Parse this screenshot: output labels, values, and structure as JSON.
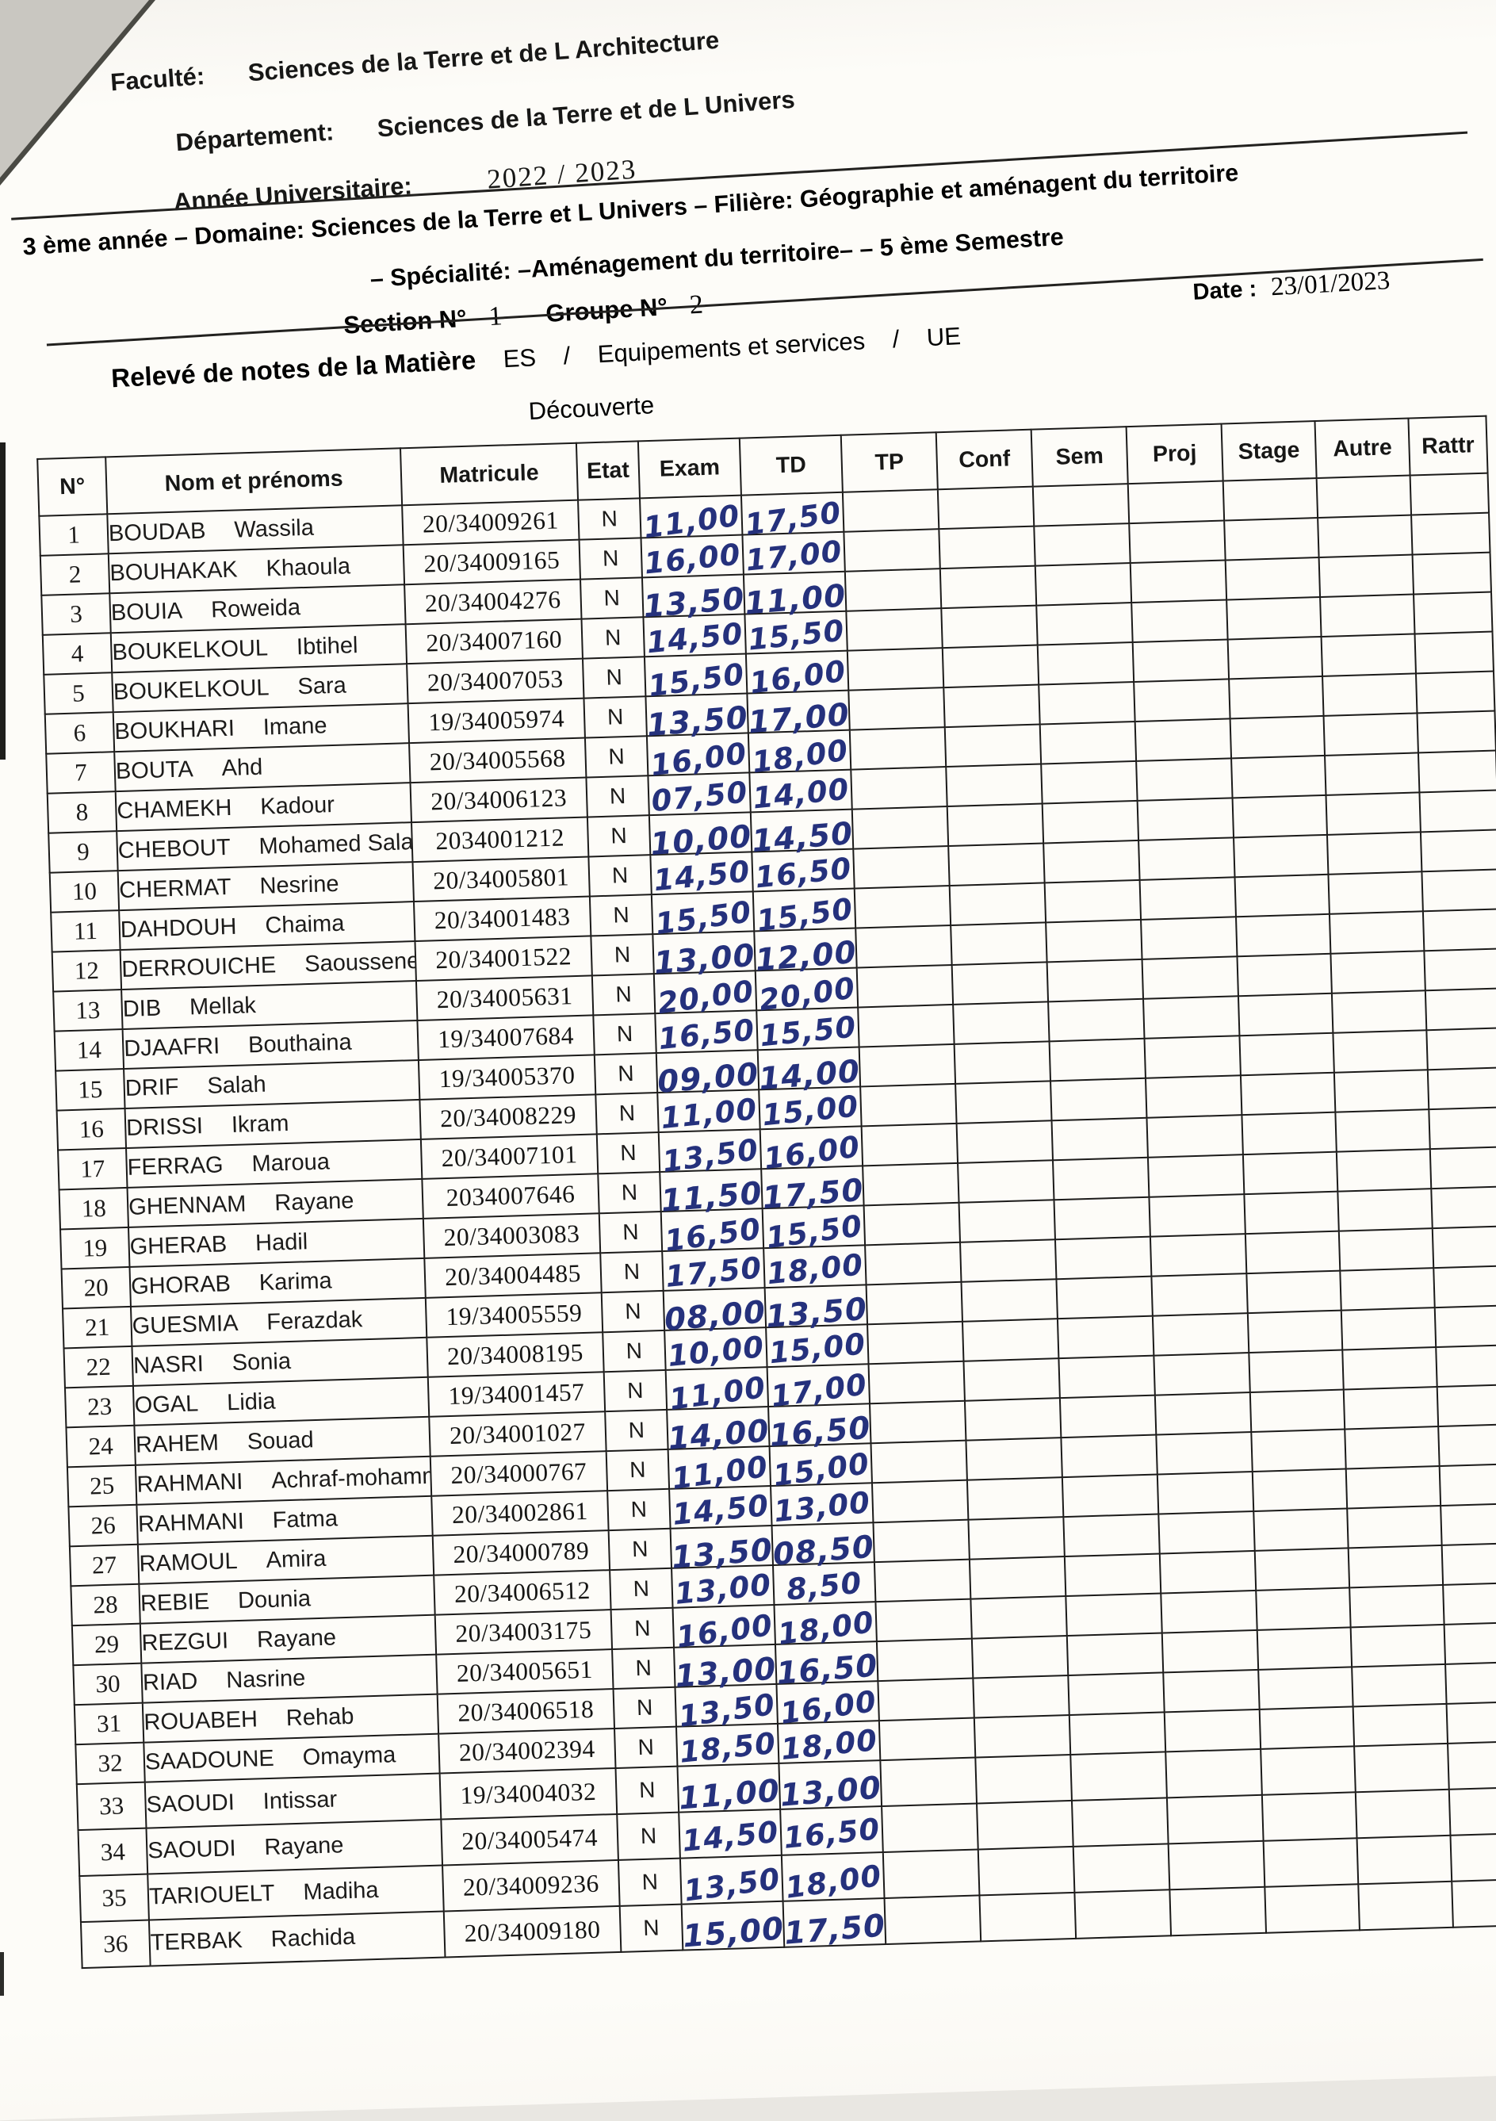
{
  "page": {
    "faculte_label": "Faculté:",
    "faculte_value": "Sciences de la Terre et de L Architecture",
    "departement_label": "Département:",
    "departement_value": "Sciences de  la Terre et de L Univers",
    "annee_label": "Année Universitaire:",
    "annee_value": "2022 /  2023",
    "ligne_domaine": "3 ème année – Domaine: Sciences de la Terre et L Univers – Filière: Géographie et aménagent du territoire",
    "ligne_specialite": "– Spécialité: –Aménagement du territoire– – 5 ème Semestre",
    "section_label": "Section N°",
    "section_value": "1",
    "groupe_label": "Groupe N°",
    "groupe_value": "2",
    "date_label": "Date :",
    "date_value": "23/01/2023",
    "releve_label": "Relevé de notes de la Matière",
    "matiere_code": "ES",
    "sep1": "/",
    "matiere_name": "Equipements et services",
    "sep2": "/",
    "ue_label": "UE",
    "ue_value": "Découverte"
  },
  "table": {
    "columns": [
      "N°",
      "Nom et prénoms",
      "Matricule",
      "Etat",
      "Exam",
      "TD",
      "TP",
      "Conf",
      "Sem",
      "Proj",
      "Stage",
      "Autre",
      "Rattr"
    ],
    "rows": [
      {
        "n": "1",
        "nom": "BOUDAB",
        "prenom": "Wassila",
        "matricule": "20/34009261",
        "etat": "N",
        "exam": "11,00",
        "td": "17,50"
      },
      {
        "n": "2",
        "nom": "BOUHAKAK",
        "prenom": "Khaoula",
        "matricule": "20/34009165",
        "etat": "N",
        "exam": "16,00",
        "td": "17,00"
      },
      {
        "n": "3",
        "nom": "BOUIA",
        "prenom": "Roweida",
        "matricule": "20/34004276",
        "etat": "N",
        "exam": "13,50",
        "td": "11,00"
      },
      {
        "n": "4",
        "nom": "BOUKELKOUL",
        "prenom": "Ibtihel",
        "matricule": "20/34007160",
        "etat": "N",
        "exam": "14,50",
        "td": "15,50"
      },
      {
        "n": "5",
        "nom": "BOUKELKOUL",
        "prenom": "Sara",
        "matricule": "20/34007053",
        "etat": "N",
        "exam": "15,50",
        "td": "16,00"
      },
      {
        "n": "6",
        "nom": "BOUKHARI",
        "prenom": "Imane",
        "matricule": "19/34005974",
        "etat": "N",
        "exam": "13,50",
        "td": "17,00"
      },
      {
        "n": "7",
        "nom": "BOUTA",
        "prenom": "Ahd",
        "matricule": "20/34005568",
        "etat": "N",
        "exam": "16,00",
        "td": "18,00"
      },
      {
        "n": "8",
        "nom": "CHAMEKH",
        "prenom": "Kadour",
        "matricule": "20/34006123",
        "etat": "N",
        "exam": "07,50",
        "td": "14,00"
      },
      {
        "n": "9",
        "nom": "CHEBOUT",
        "prenom": "Mohamed Salah",
        "matricule": "2034001212",
        "etat": "N",
        "exam": "10,00",
        "td": "14,50"
      },
      {
        "n": "10",
        "nom": "CHERMAT",
        "prenom": "Nesrine",
        "matricule": "20/34005801",
        "etat": "N",
        "exam": "14,50",
        "td": "16,50"
      },
      {
        "n": "11",
        "nom": "DAHDOUH",
        "prenom": "Chaima",
        "matricule": "20/34001483",
        "etat": "N",
        "exam": "15,50",
        "td": "15,50"
      },
      {
        "n": "12",
        "nom": "DERROUICHE",
        "prenom": "Saoussene",
        "matricule": "20/34001522",
        "etat": "N",
        "exam": "13,00",
        "td": "12,00"
      },
      {
        "n": "13",
        "nom": "DIB",
        "prenom": "Mellak",
        "matricule": "20/34005631",
        "etat": "N",
        "exam": "20,00",
        "td": "20,00"
      },
      {
        "n": "14",
        "nom": "DJAAFRI",
        "prenom": "Bouthaina",
        "matricule": "19/34007684",
        "etat": "N",
        "exam": "16,50",
        "td": "15,50"
      },
      {
        "n": "15",
        "nom": "DRIF",
        "prenom": "Salah",
        "matricule": "19/34005370",
        "etat": "N",
        "exam": "09,00",
        "td": "14,00"
      },
      {
        "n": "16",
        "nom": "DRISSI",
        "prenom": "Ikram",
        "matricule": "20/34008229",
        "etat": "N",
        "exam": "11,00",
        "td": "15,00"
      },
      {
        "n": "17",
        "nom": "FERRAG",
        "prenom": "Maroua",
        "matricule": "20/34007101",
        "etat": "N",
        "exam": "13,50",
        "td": "16,00"
      },
      {
        "n": "18",
        "nom": "GHENNAM",
        "prenom": "Rayane",
        "matricule": "2034007646",
        "etat": "N",
        "exam": "11,50",
        "td": "17,50"
      },
      {
        "n": "19",
        "nom": "GHERAB",
        "prenom": "Hadil",
        "matricule": "20/34003083",
        "etat": "N",
        "exam": "16,50",
        "td": "15,50"
      },
      {
        "n": "20",
        "nom": "GHORAB",
        "prenom": "Karima",
        "matricule": "20/34004485",
        "etat": "N",
        "exam": "17,50",
        "td": "18,00"
      },
      {
        "n": "21",
        "nom": "GUESMIA",
        "prenom": "Ferazdak",
        "matricule": "19/34005559",
        "etat": "N",
        "exam": "08,00",
        "td": "13,50"
      },
      {
        "n": "22",
        "nom": "NASRI",
        "prenom": "Sonia",
        "matricule": "20/34008195",
        "etat": "N",
        "exam": "10,00",
        "td": "15,00"
      },
      {
        "n": "23",
        "nom": "OGAL",
        "prenom": "Lidia",
        "matricule": "19/34001457",
        "etat": "N",
        "exam": "11,00",
        "td": "17,00"
      },
      {
        "n": "24",
        "nom": "RAHEM",
        "prenom": "Souad",
        "matricule": "20/34001027",
        "etat": "N",
        "exam": "14,00",
        "td": "16,50"
      },
      {
        "n": "25",
        "nom": "RAHMANI",
        "prenom": "Achraf-mohammed-a",
        "matricule": "20/34000767",
        "etat": "N",
        "exam": "11,00",
        "td": "15,00"
      },
      {
        "n": "26",
        "nom": "RAHMANI",
        "prenom": "Fatma",
        "matricule": "20/34002861",
        "etat": "N",
        "exam": "14,50",
        "td": "13,00"
      },
      {
        "n": "27",
        "nom": "RAMOUL",
        "prenom": "Amira",
        "matricule": "20/34000789",
        "etat": "N",
        "exam": "13,50",
        "td": "08,50"
      },
      {
        "n": "28",
        "nom": "REBIE",
        "prenom": "Dounia",
        "matricule": "20/34006512",
        "etat": "N",
        "exam": "13,00",
        "td": "8,50"
      },
      {
        "n": "29",
        "nom": "REZGUI",
        "prenom": "Rayane",
        "matricule": "20/34003175",
        "etat": "N",
        "exam": "16,00",
        "td": "18,00"
      },
      {
        "n": "30",
        "nom": "RIAD",
        "prenom": "Nasrine",
        "matricule": "20/34005651",
        "etat": "N",
        "exam": "13,00",
        "td": "16,50"
      },
      {
        "n": "31",
        "nom": "ROUABEH",
        "prenom": "Rehab",
        "matricule": "20/34006518",
        "etat": "N",
        "exam": "13,50",
        "td": "16,00"
      },
      {
        "n": "32",
        "nom": "SAADOUNE",
        "prenom": "Omayma",
        "matricule": "20/34002394",
        "etat": "N",
        "exam": "18,50",
        "td": "18,00"
      },
      {
        "n": "33",
        "nom": "SAOUDI",
        "prenom": "Intissar",
        "matricule": "19/34004032",
        "etat": "N",
        "exam": "11,00",
        "td": "13,00"
      },
      {
        "n": "34",
        "nom": "SAOUDI",
        "prenom": "Rayane",
        "matricule": "20/34005474",
        "etat": "N",
        "exam": "14,50",
        "td": "16,50"
      },
      {
        "n": "35",
        "nom": "TARIOUELT",
        "prenom": "Madiha",
        "matricule": "20/34009236",
        "etat": "N",
        "exam": "13,50",
        "td": "18,00"
      },
      {
        "n": "36",
        "nom": "TERBAK",
        "prenom": "Rachida",
        "matricule": "20/34009180",
        "etat": "N",
        "exam": "15,00",
        "td": "17,50"
      }
    ]
  },
  "ink_color": "#25317c"
}
